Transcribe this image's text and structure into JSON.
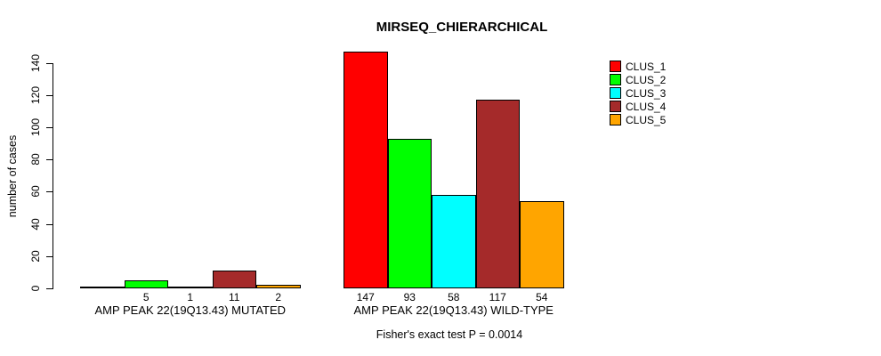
{
  "title": "MIRSEQ_CHIERARCHICAL",
  "y_axis": {
    "label": "number of cases"
  },
  "footer": {
    "note": "Fisher's exact test P = 0.0014"
  },
  "legend": {
    "position": "top-right",
    "items": [
      {
        "label": "CLUS_1",
        "color": "#FF0000"
      },
      {
        "label": "CLUS_2",
        "color": "#00FF00"
      },
      {
        "label": "CLUS_3",
        "color": "#00FFFF"
      },
      {
        "label": "CLUS_4",
        "color": "#A52A2A"
      },
      {
        "label": "CLUS_5",
        "color": "#FFA500"
      }
    ]
  },
  "chart_data": {
    "type": "bar",
    "title": "MIRSEQ_CHIERARCHICAL",
    "categories": [
      "AMP PEAK 22(19Q13.43) MUTATED",
      "AMP PEAK 22(19Q13.43) WILD-TYPE"
    ],
    "series": [
      {
        "name": "CLUS_1",
        "color": "#FF0000",
        "values": [
          0,
          147
        ]
      },
      {
        "name": "CLUS_2",
        "color": "#00FF00",
        "values": [
          5,
          93
        ]
      },
      {
        "name": "CLUS_3",
        "color": "#00FFFF",
        "values": [
          1,
          58
        ]
      },
      {
        "name": "CLUS_4",
        "color": "#A52A2A",
        "values": [
          11,
          117
        ]
      },
      {
        "name": "CLUS_5",
        "color": "#FFA500",
        "values": [
          2,
          54
        ]
      }
    ],
    "xlabel": "",
    "ylabel": "number of cases",
    "ylim": [
      0,
      147
    ],
    "yticks": [
      0,
      20,
      40,
      60,
      80,
      100,
      120,
      140
    ],
    "grid": false,
    "legend_position": "top-right",
    "bar_value_labels": true,
    "zero_value_labels_hidden": true,
    "annotation": "Fisher's exact test P = 0.0014"
  }
}
